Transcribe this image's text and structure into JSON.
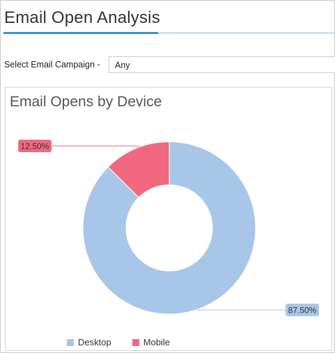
{
  "page": {
    "title": "Email Open Analysis"
  },
  "filter": {
    "label": "Select Email Campaign -",
    "selected": "Any"
  },
  "panel": {
    "title": "Email Opens by Device"
  },
  "chart_data": {
    "type": "pie",
    "title": "Email Opens by Device",
    "donut": true,
    "categories": [
      "Desktop",
      "Mobile"
    ],
    "values": [
      87.5,
      12.5
    ],
    "labels": [
      "87.50%",
      "12.50%"
    ],
    "colors": [
      "#a8c6e8",
      "#f0697e"
    ],
    "legend": "bottom-left"
  }
}
